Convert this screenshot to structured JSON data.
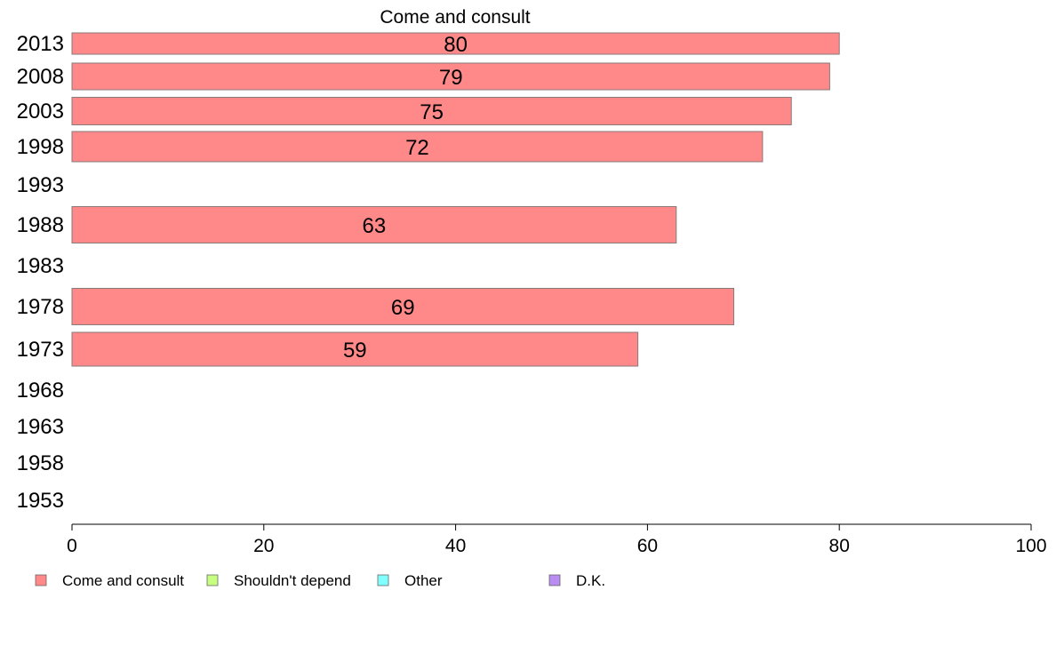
{
  "chart_data": {
    "type": "bar",
    "orientation": "horizontal",
    "title": "Come and consult",
    "categories": [
      "2013",
      "2008",
      "2003",
      "1998",
      "1993",
      "1988",
      "1983",
      "1978",
      "1973",
      "1968",
      "1963",
      "1958",
      "1953"
    ],
    "series": [
      {
        "name": "Come and consult",
        "values": [
          80,
          79,
          75,
          72,
          null,
          63,
          null,
          69,
          59,
          null,
          null,
          null,
          null
        ]
      }
    ],
    "data_labels": [
      "80",
      "79",
      "75",
      "72",
      "",
      "63",
      "",
      "69",
      "59",
      "",
      "",
      "",
      ""
    ],
    "xlim": [
      0,
      100
    ],
    "xticks": [
      0,
      20,
      40,
      60,
      80,
      100
    ],
    "grid": false,
    "legend": {
      "placement": "bottom-left",
      "entries": [
        {
          "label": "Come and consult",
          "color": "#ff8888"
        },
        {
          "label": "Shouldn't depend",
          "color": "#c6ff80"
        },
        {
          "label": "Other",
          "color": "#80ffff"
        },
        {
          "label": "D.K.",
          "color": "#b98cf2"
        }
      ]
    },
    "bar_color": "#ff8888",
    "bar_border": "#8a7a7a"
  }
}
